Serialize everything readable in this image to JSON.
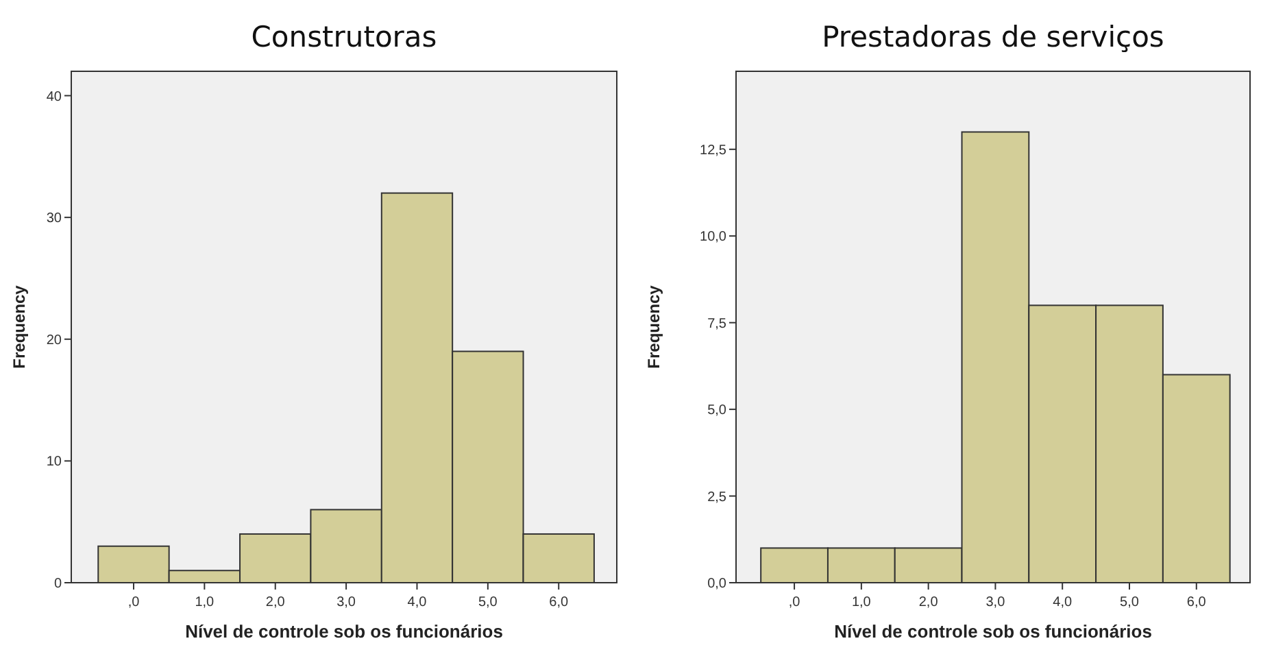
{
  "chart_data": [
    {
      "type": "histogram",
      "title": "Construtoras",
      "xlabel": "Nível de controle sob os funcionários",
      "ylabel": "Frequency",
      "bins": [
        -0.5,
        0.5,
        1.5,
        2.5,
        3.5,
        4.5,
        5.5,
        6.5
      ],
      "values": [
        3,
        1,
        4,
        6,
        32,
        19,
        4
      ],
      "color": "#d3ce98",
      "xlim": [
        -0.88,
        6.82
      ],
      "ylim": [
        0,
        42
      ],
      "xticks": [
        {
          "value": 0,
          "label": ",0"
        },
        {
          "value": 1,
          "label": "1,0"
        },
        {
          "value": 2,
          "label": "2,0"
        },
        {
          "value": 3,
          "label": "3,0"
        },
        {
          "value": 4,
          "label": "4,0"
        },
        {
          "value": 5,
          "label": "5,0"
        },
        {
          "value": 6,
          "label": "6,0"
        }
      ],
      "yticks": [
        0,
        10,
        20,
        30,
        40
      ],
      "grid": false
    },
    {
      "type": "histogram",
      "title": "Prestadoras de serviços",
      "xlabel": "Nível de controle sob os funcionários",
      "ylabel": "Frequency",
      "bins": [
        -0.5,
        0.5,
        1.5,
        2.5,
        3.5,
        4.5,
        5.5,
        6.5
      ],
      "values": [
        1,
        1,
        1,
        13,
        8,
        8,
        6
      ],
      "color": "#d3ce98",
      "xlim": [
        -0.87,
        6.8
      ],
      "ylim": [
        0,
        14.75
      ],
      "xticks": [
        {
          "value": 0,
          "label": ",0"
        },
        {
          "value": 1,
          "label": "1,0"
        },
        {
          "value": 2,
          "label": "2,0"
        },
        {
          "value": 3,
          "label": "3,0"
        },
        {
          "value": 4,
          "label": "4,0"
        },
        {
          "value": 5,
          "label": "5,0"
        },
        {
          "value": 6,
          "label": "6,0"
        }
      ],
      "yticks": [
        {
          "value": 0,
          "label": "0,0"
        },
        {
          "value": 2.5,
          "label": "2,5"
        },
        {
          "value": 5,
          "label": "5,0"
        },
        {
          "value": 7.5,
          "label": "7,5"
        },
        {
          "value": 10,
          "label": "10,0"
        },
        {
          "value": 12.5,
          "label": "12,5"
        }
      ],
      "grid": false
    }
  ]
}
